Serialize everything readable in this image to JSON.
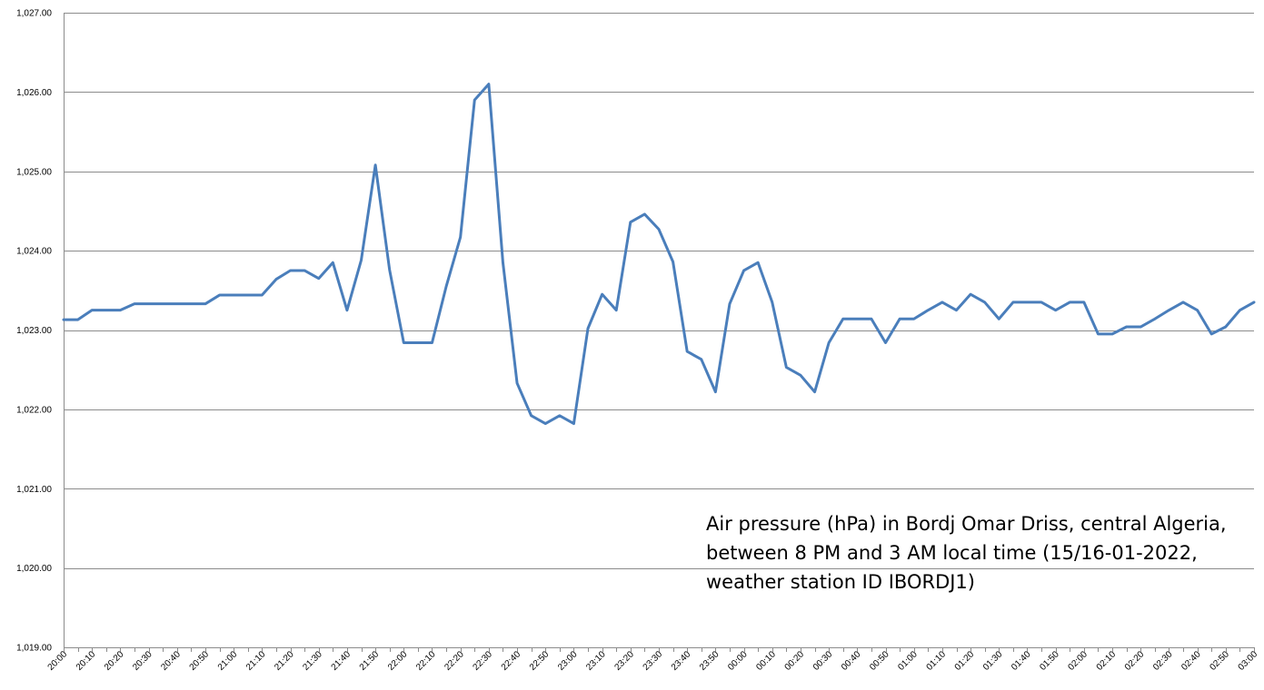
{
  "chart_data": {
    "type": "line",
    "title": "",
    "xlabel": "",
    "ylabel": "",
    "ylim": [
      1019,
      1027
    ],
    "y_ticks": [
      "1,019.00",
      "1,020.00",
      "1,021.00",
      "1,022.00",
      "1,023.00",
      "1,024.00",
      "1,025.00",
      "1,026.00",
      "1,027.00"
    ],
    "x_tick_labels": [
      "20:00",
      "20:10",
      "20:20",
      "20:30",
      "20:40",
      "20:50",
      "21:00",
      "21:10",
      "21:20",
      "21:30",
      "21:40",
      "21:50",
      "22:00",
      "22:10",
      "22:20",
      "22:30",
      "22:40",
      "22:50",
      "23:00",
      "23:10",
      "23:20",
      "23:30",
      "23:40",
      "23:50",
      "00:00",
      "00:10",
      "00:20",
      "00:30",
      "00:40",
      "00:50",
      "01:00",
      "01:10",
      "01:20",
      "01:30",
      "01:40",
      "01:50",
      "02:00",
      "02:10",
      "02:20",
      "02:30",
      "02:40",
      "02:50",
      "03:00"
    ],
    "grid": true,
    "legend": "none",
    "series": [
      {
        "color": "#4a7ebb",
        "values": [
          1023.13,
          1023.13,
          1023.25,
          1023.25,
          1023.25,
          1023.33,
          1023.33,
          1023.33,
          1023.33,
          1023.33,
          1023.33,
          1023.44,
          1023.44,
          1023.44,
          1023.44,
          1023.64,
          1023.75,
          1023.75,
          1023.65,
          1023.85,
          1023.25,
          1023.88,
          1025.08,
          1023.76,
          1022.84,
          1022.84,
          1022.84,
          1023.55,
          1024.17,
          1025.9,
          1026.1,
          1023.85,
          1022.33,
          1021.92,
          1021.82,
          1021.92,
          1021.82,
          1023.02,
          1023.45,
          1023.25,
          1024.36,
          1024.46,
          1024.27,
          1023.86,
          1022.73,
          1022.63,
          1022.22,
          1023.33,
          1023.75,
          1023.85,
          1023.35,
          1022.53,
          1022.43,
          1022.22,
          1022.84,
          1023.14,
          1023.14,
          1023.14,
          1022.84,
          1023.14,
          1023.14,
          1023.25,
          1023.35,
          1023.25,
          1023.45,
          1023.35,
          1023.14,
          1023.35,
          1023.35,
          1023.35,
          1023.25,
          1023.35,
          1023.35,
          1022.95,
          1022.95,
          1023.04,
          1023.04,
          1023.14,
          1023.25,
          1023.35,
          1023.25,
          1022.95,
          1023.04,
          1023.25,
          1023.35
        ]
      }
    ]
  },
  "annotation_lines": [
    "Air pressure (hPa) in Bordj Omar Driss, central Algeria,",
    "between 8 PM and 3 AM local time (15/16-01-2022,",
    "weather station ID IBORDJ1)"
  ]
}
